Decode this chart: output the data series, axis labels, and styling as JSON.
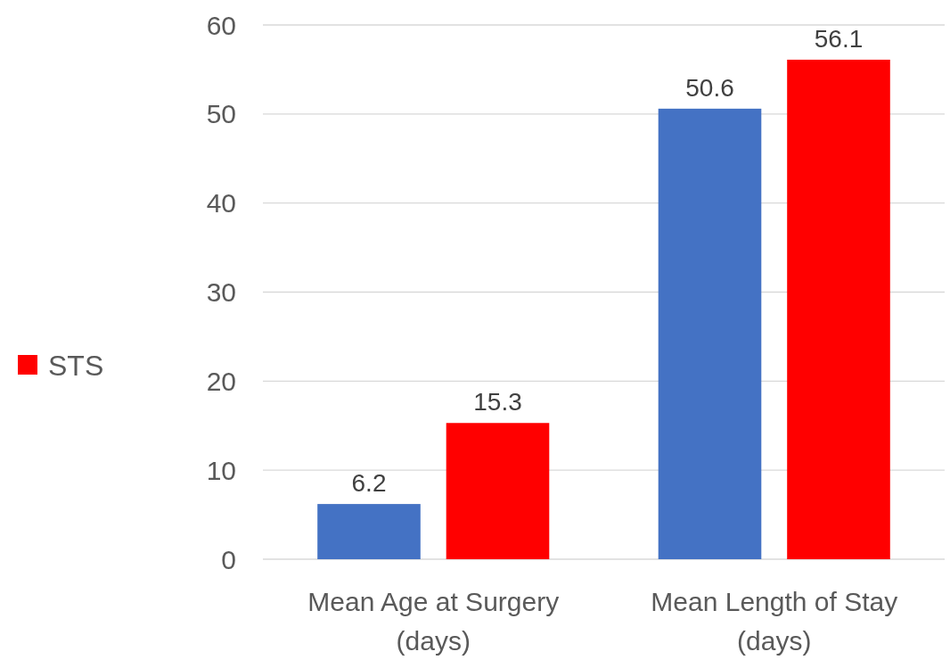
{
  "chart_data": {
    "type": "bar",
    "categories": [
      "Mean Age at Surgery\n(days)",
      "Mean Length of Stay\n(days)"
    ],
    "series": [
      {
        "color": "#4472c4",
        "values": [
          6.2,
          50.6
        ]
      },
      {
        "name": "STS",
        "color": "#ff0000",
        "values": [
          15.3,
          56.1
        ]
      }
    ],
    "ylim": [
      0,
      60
    ],
    "yticks": [
      0,
      10,
      20,
      30,
      40,
      50,
      60
    ],
    "grid": "y",
    "legend": "left",
    "data_labels": true
  }
}
